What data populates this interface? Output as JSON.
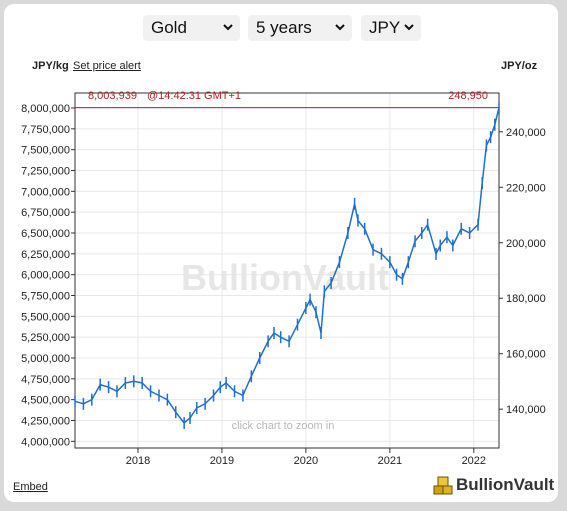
{
  "controls": {
    "metal": "Gold",
    "period": "5 years",
    "currency": "JPY"
  },
  "header": {
    "left_unit": "JPY/kg",
    "set_alert": "Set price alert",
    "right_unit": "JPY/oz"
  },
  "footer": {
    "embed": "Embed",
    "brand": "BullionVault"
  },
  "colors": {
    "series": "#1f6fd0",
    "price_line": "#b22222",
    "grid": "#e8e8e8",
    "watermark": "#e6e6e6"
  },
  "chart_data": {
    "type": "line",
    "title": "",
    "watermark": "BullionVault",
    "hint": "click chart to zoom in",
    "last_price_kg": "8,003,939",
    "last_time": "@14:42:31 GMT+1",
    "last_price_oz": "248,950",
    "last_price_kg_value": 8003939,
    "xlabel": "",
    "ylabel_left": "JPY/kg",
    "ylabel_right": "JPY/oz",
    "x_range": [
      2017.25,
      2022.3
    ],
    "ylim_left": [
      3920000,
      8180000
    ],
    "ylim_right": [
      126000,
      254000
    ],
    "y_ticks_left": [
      {
        "v": 8000000,
        "label": "8,000,000"
      },
      {
        "v": 7750000,
        "label": "7,750,000"
      },
      {
        "v": 7500000,
        "label": "7,500,000"
      },
      {
        "v": 7250000,
        "label": "7,250,000"
      },
      {
        "v": 7000000,
        "label": "7,000,000"
      },
      {
        "v": 6750000,
        "label": "6,750,000"
      },
      {
        "v": 6500000,
        "label": "6,500,000"
      },
      {
        "v": 6250000,
        "label": "6,250,000"
      },
      {
        "v": 6000000,
        "label": "6,000,000"
      },
      {
        "v": 5750000,
        "label": "5,750,000"
      },
      {
        "v": 5500000,
        "label": "5,500,000"
      },
      {
        "v": 5250000,
        "label": "5,250,000"
      },
      {
        "v": 5000000,
        "label": "5,000,000"
      },
      {
        "v": 4750000,
        "label": "4,750,000"
      },
      {
        "v": 4500000,
        "label": "4,500,000"
      },
      {
        "v": 4250000,
        "label": "4,250,000"
      },
      {
        "v": 4000000,
        "label": "4,000,000"
      }
    ],
    "y_ticks_right": [
      {
        "v": 240000,
        "label": "240,000"
      },
      {
        "v": 220000,
        "label": "220,000"
      },
      {
        "v": 200000,
        "label": "200,000"
      },
      {
        "v": 180000,
        "label": "180,000"
      },
      {
        "v": 160000,
        "label": "160,000"
      },
      {
        "v": 140000,
        "label": "140,000"
      }
    ],
    "x_ticks": [
      {
        "v": 2018,
        "label": "2018"
      },
      {
        "v": 2019,
        "label": "2019"
      },
      {
        "v": 2020,
        "label": "2020"
      },
      {
        "v": 2021,
        "label": "2021"
      },
      {
        "v": 2022,
        "label": "2022"
      }
    ],
    "series": [
      {
        "x": [
          2017.25,
          2017.35,
          2017.45,
          2017.55,
          2017.65,
          2017.75,
          2017.85,
          2017.95,
          2018.05,
          2018.15,
          2018.25,
          2018.35,
          2018.45,
          2018.55,
          2018.62,
          2018.7,
          2018.8,
          2018.9,
          2018.98,
          2019.05,
          2019.15,
          2019.25,
          2019.35,
          2019.45,
          2019.55,
          2019.62,
          2019.7,
          2019.8,
          2019.9,
          2020.0,
          2020.05,
          2020.12,
          2020.18,
          2020.22,
          2020.3,
          2020.4,
          2020.5,
          2020.58,
          2020.62,
          2020.7,
          2020.8,
          2020.9,
          2021.0,
          2021.08,
          2021.15,
          2021.22,
          2021.3,
          2021.38,
          2021.45,
          2021.55,
          2021.6,
          2021.68,
          2021.75,
          2021.85,
          2021.95,
          2022.05,
          2022.1,
          2022.15,
          2022.2,
          2022.25,
          2022.3
        ],
        "y": [
          4480000,
          4450000,
          4500000,
          4680000,
          4650000,
          4600000,
          4700000,
          4720000,
          4700000,
          4600000,
          4550000,
          4500000,
          4350000,
          4220000,
          4280000,
          4400000,
          4450000,
          4550000,
          4650000,
          4700000,
          4600000,
          4550000,
          4780000,
          5000000,
          5200000,
          5300000,
          5250000,
          5200000,
          5400000,
          5600000,
          5700000,
          5550000,
          5300000,
          5800000,
          5900000,
          6150000,
          6500000,
          6850000,
          6650000,
          6550000,
          6300000,
          6250000,
          6150000,
          6000000,
          5950000,
          6150000,
          6400000,
          6500000,
          6600000,
          6250000,
          6350000,
          6450000,
          6350000,
          6550000,
          6500000,
          6600000,
          7100000,
          7550000,
          7650000,
          7800000,
          8003939
        ]
      }
    ]
  }
}
